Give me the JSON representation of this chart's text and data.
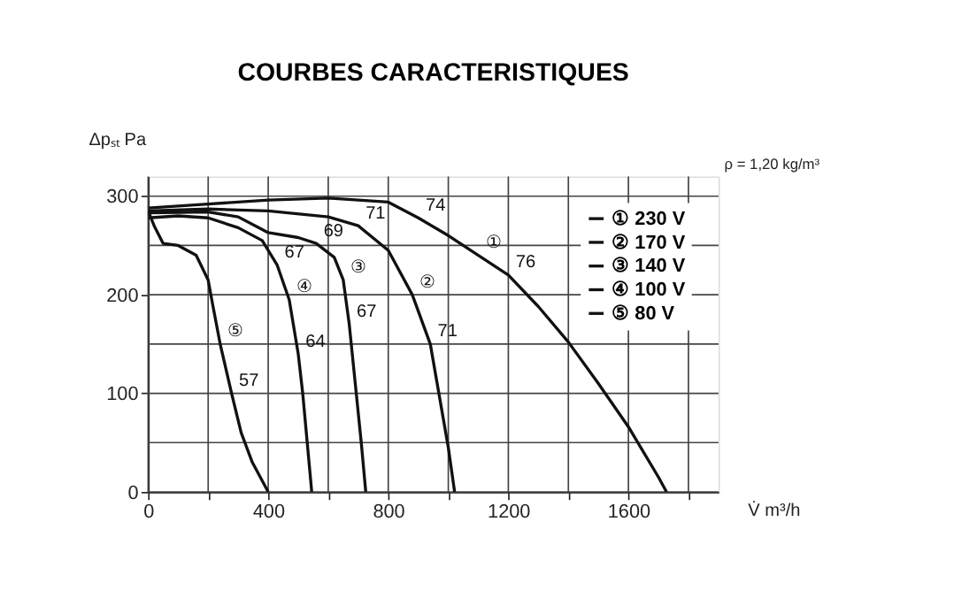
{
  "chart_data": {
    "type": "line",
    "title": "COURBES CARACTERISTIQUES",
    "xlabel": "V̇ m³/h",
    "ylabel": "Δpₛₜ Pa",
    "xlim": [
      0,
      1900
    ],
    "ylim": [
      0,
      320
    ],
    "xticks": [
      0,
      {
        "value": 200,
        "label": null
      },
      400,
      {
        "value": 600,
        "label": null
      },
      800,
      {
        "value": 1000,
        "label": null
      },
      1200,
      {
        "value": 1400,
        "label": null
      },
      1600,
      {
        "value": 1800,
        "label": null
      }
    ],
    "yticks": [
      0,
      {
        "value": 50,
        "label": null
      },
      100,
      {
        "value": 150,
        "label": null
      },
      200,
      {
        "value": 250,
        "label": null
      },
      300
    ],
    "grid": true,
    "legend": "top right",
    "marker": "none",
    "line_style": "solid",
    "series": [
      {
        "name": "① 230 V",
        "color": "#111111",
        "x": [
          0,
          200,
          400,
          600,
          800,
          900,
          1000,
          1100,
          1200,
          1300,
          1400,
          1500,
          1600,
          1700,
          1727
        ],
        "values": [
          288,
          292,
          296,
          298,
          294,
          278,
          260,
          240,
          220,
          188,
          152,
          110,
          66,
          15,
          0
        ]
      },
      {
        "name": "② 170 V",
        "color": "#111111",
        "x": [
          0,
          200,
          400,
          600,
          700,
          800,
          880,
          940,
          980,
          1000,
          1021
        ],
        "values": [
          285,
          287,
          285,
          279,
          270,
          245,
          200,
          150,
          80,
          45,
          0
        ]
      },
      {
        "name": "③ 140 V",
        "color": "#111111",
        "x": [
          0,
          200,
          300,
          400,
          500,
          560,
          620,
          650,
          670,
          690,
          710,
          725
        ],
        "values": [
          283,
          284,
          279,
          263,
          258,
          252,
          238,
          215,
          170,
          110,
          50,
          0
        ]
      },
      {
        "name": "④ 100 V",
        "color": "#111111",
        "x": [
          0,
          100,
          200,
          300,
          380,
          430,
          470,
          500,
          515,
          530,
          545
        ],
        "values": [
          278,
          280,
          278,
          268,
          255,
          230,
          195,
          140,
          100,
          50,
          0
        ]
      },
      {
        "name": "⑤ 80 V",
        "color": "#111111",
        "x": [
          0,
          20,
          50,
          100,
          160,
          200,
          215,
          240,
          278,
          310,
          347,
          400
        ],
        "values": [
          285,
          270,
          252,
          250,
          240,
          215,
          190,
          150,
          100,
          60,
          30,
          0
        ]
      }
    ],
    "annotations": [
      {
        "text": "74",
        "x": 900,
        "y": 278
      },
      {
        "text": "71",
        "x": 700,
        "y": 270
      },
      {
        "text": "69",
        "x": 560,
        "y": 252
      },
      {
        "text": "67",
        "x": 430,
        "y": 230
      },
      {
        "text": "71",
        "x": 940,
        "y": 150
      },
      {
        "text": "76",
        "x": 1200,
        "y": 220
      },
      {
        "text": "67",
        "x": 670,
        "y": 170
      },
      {
        "text": "64",
        "x": 500,
        "y": 140
      },
      {
        "text": "57",
        "x": 278,
        "y": 100
      },
      {
        "text": "①",
        "x": 1100,
        "y": 240
      },
      {
        "text": "②",
        "x": 880,
        "y": 200
      },
      {
        "text": "③",
        "x": 650,
        "y": 215
      },
      {
        "text": "④",
        "x": 470,
        "y": 195
      },
      {
        "text": "⑤",
        "x": 240,
        "y": 150
      },
      "ρ = 1,20 kg/m³"
    ]
  }
}
